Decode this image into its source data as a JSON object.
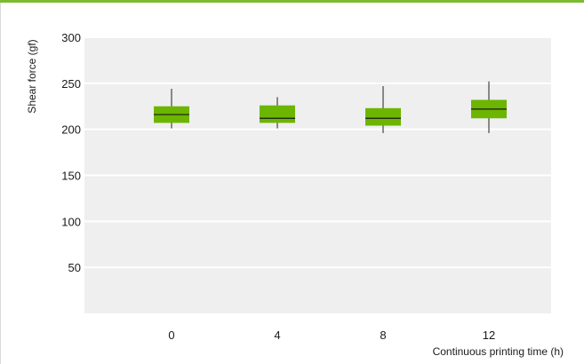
{
  "chart_data": {
    "type": "box",
    "categories": [
      "0",
      "4",
      "8",
      "12"
    ],
    "boxes": [
      {
        "x": "0",
        "min": 201,
        "q1": 207,
        "median": 216,
        "q3": 225,
        "max": 244
      },
      {
        "x": "4",
        "min": 201,
        "q1": 207,
        "median": 212,
        "q3": 226,
        "max": 235
      },
      {
        "x": "8",
        "min": 196,
        "q1": 204,
        "median": 212,
        "q3": 223,
        "max": 247
      },
      {
        "x": "12",
        "min": 196,
        "q1": 212,
        "median": 222,
        "q3": 232,
        "max": 252
      }
    ],
    "ylabel": "Shear force (gf)",
    "xlabel": "Continuous printing time (h)",
    "ylim": [
      0,
      300
    ],
    "yticks": [
      50,
      100,
      150,
      200,
      250,
      300
    ],
    "grid": true,
    "colors": {
      "box": "#6cb500",
      "background": "#efefef",
      "grid": "#ffffff",
      "accent": "#7cbb2e"
    }
  }
}
